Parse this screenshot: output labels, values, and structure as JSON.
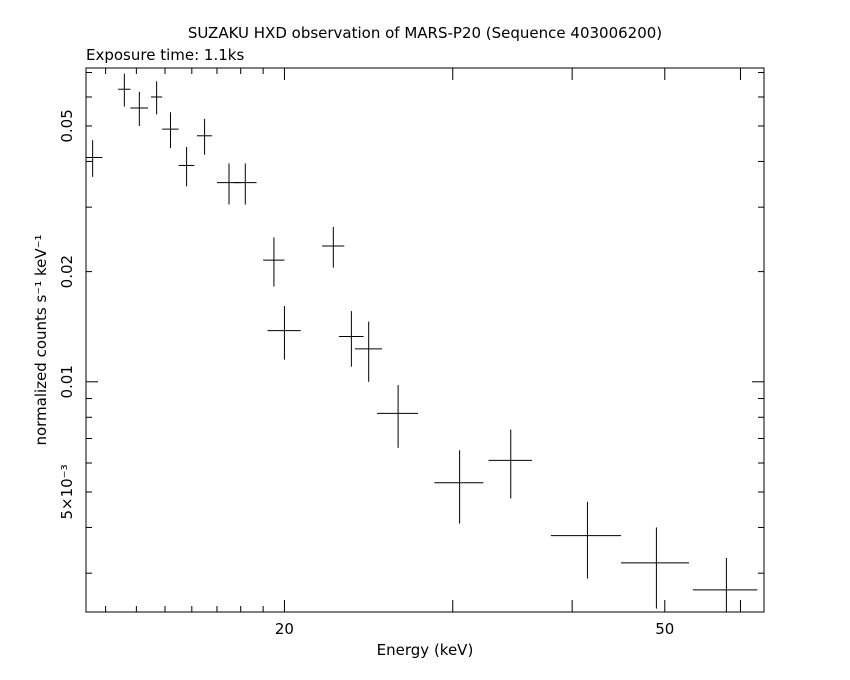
{
  "chart_data": {
    "type": "scatter",
    "title": "SUZAKU HXD observation of MARS-P20 (Sequence 403006200)",
    "subtitle": "Exposure time: 1.1ks",
    "xlabel": "Energy (keV)",
    "ylabel": "normalized counts s⁻¹ keV⁻¹",
    "xscale": "log",
    "yscale": "log",
    "xlim": [
      12.4,
      63.5
    ],
    "ylim": [
      0.00235,
      0.072
    ],
    "x_ticks": [
      {
        "value": 20,
        "label": "20"
      },
      {
        "value": 50,
        "label": "50"
      }
    ],
    "y_ticks": [
      {
        "value": 0.005,
        "label": "5×10⁻³"
      },
      {
        "value": 0.01,
        "label": "0.01"
      },
      {
        "value": 0.02,
        "label": "0.02"
      },
      {
        "value": 0.05,
        "label": "0.05"
      }
    ],
    "grid": false,
    "legend": "none",
    "series": [
      {
        "x": [
          12.6,
          13.6,
          14.1,
          14.7,
          15.2,
          15.8,
          16.5,
          17.5,
          18.2,
          19.5,
          20.0,
          22.5,
          23.5,
          24.5,
          26.3,
          30.5,
          34.5,
          41.5,
          49.0,
          58.0
        ],
        "xerr": [
          0.3,
          0.2,
          0.3,
          0.2,
          0.3,
          0.3,
          0.3,
          0.5,
          0.5,
          0.5,
          0.8,
          0.6,
          0.7,
          0.8,
          1.3,
          1.8,
          1.8,
          3.5,
          4.0,
          4.5
        ],
        "y": [
          0.041,
          0.063,
          0.056,
          0.06,
          0.049,
          0.039,
          0.047,
          0.035,
          0.035,
          0.0215,
          0.0138,
          0.0235,
          0.0133,
          0.0123,
          0.0082,
          0.0053,
          0.0061,
          0.0038,
          0.0032,
          0.0027
        ],
        "yerr": [
          0.0047,
          0.0065,
          0.006,
          0.0062,
          0.0055,
          0.0048,
          0.0053,
          0.0045,
          0.0045,
          0.0033,
          0.0023,
          0.003,
          0.0023,
          0.0023,
          0.0016,
          0.0012,
          0.0013,
          0.0009,
          0.0008,
          0.0006
        ]
      }
    ]
  }
}
